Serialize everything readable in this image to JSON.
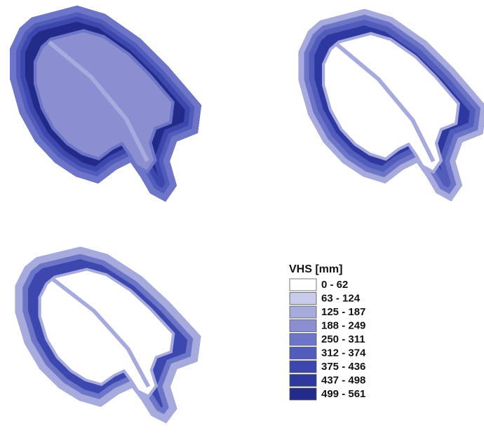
{
  "legend": {
    "title": "VHS [mm]",
    "items": [
      {
        "label": "0 - 62",
        "color": "#ffffff"
      },
      {
        "label": "63 - 124",
        "color": "#c9cbea"
      },
      {
        "label": "125 - 187",
        "color": "#a7aadd"
      },
      {
        "label": "188 - 249",
        "color": "#8b8fd2"
      },
      {
        "label": "250 - 311",
        "color": "#6d75c8"
      },
      {
        "label": "312 - 374",
        "color": "#525dbb"
      },
      {
        "label": "375 - 436",
        "color": "#3c48ae"
      },
      {
        "label": "437 - 498",
        "color": "#2d38a1"
      },
      {
        "label": "499 - 561",
        "color": "#232b8a"
      }
    ]
  }
}
